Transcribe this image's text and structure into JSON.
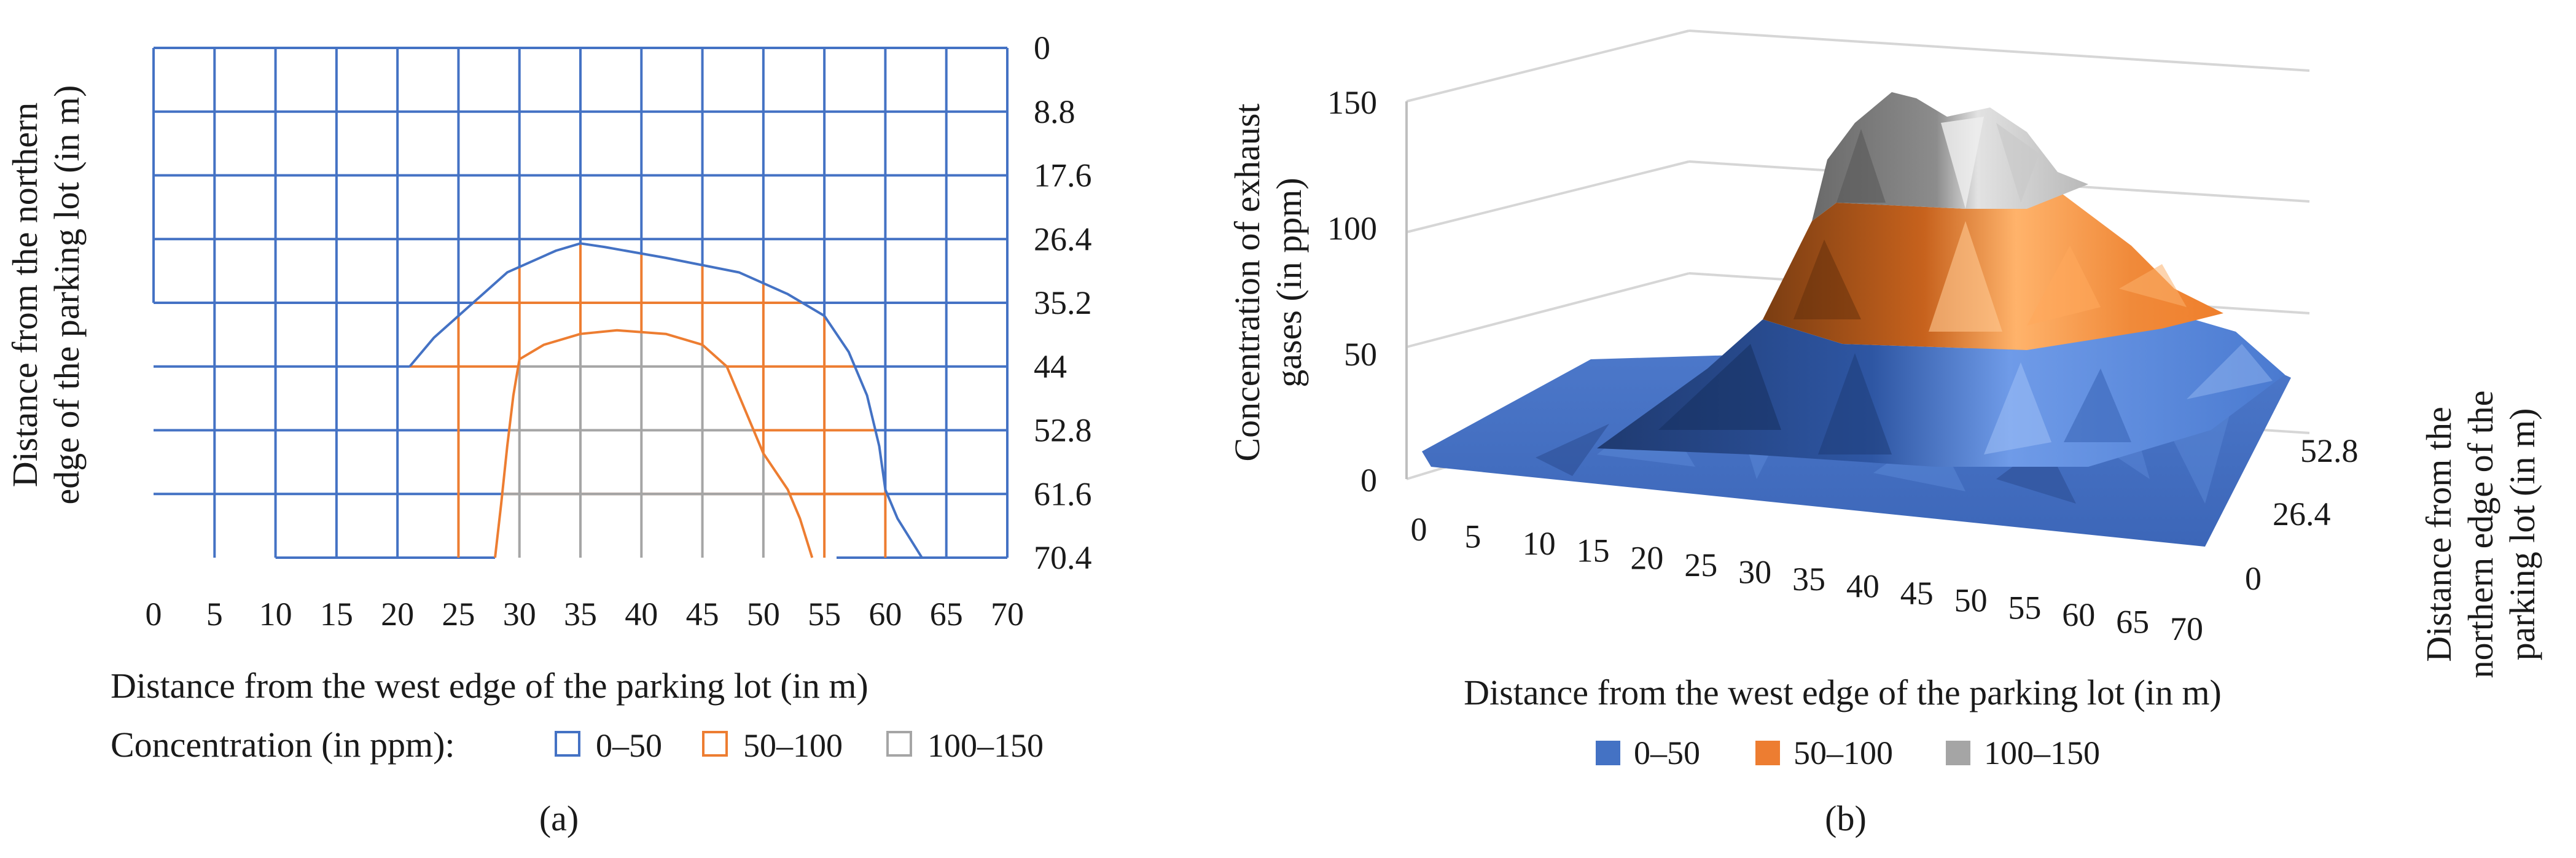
{
  "chart_data": [
    {
      "panel_label": "(a)",
      "type": "contour",
      "xlabel": "Distance from the west edge of the parking lot (in m)",
      "ylabel_line1": "Distance from the northern",
      "ylabel_line2": "edge of the parking lot (in m)",
      "x_ticks": [
        "0",
        "5",
        "10",
        "15",
        "20",
        "25",
        "30",
        "35",
        "40",
        "45",
        "50",
        "55",
        "60",
        "65",
        "70"
      ],
      "y_ticks": [
        "0",
        "8.8",
        "17.6",
        "26.4",
        "35.2",
        "44",
        "52.8",
        "61.6",
        "70.4"
      ],
      "xlim": [
        0,
        70
      ],
      "ylim": [
        0,
        70.4
      ],
      "legend_title": "Concentration (in ppm):",
      "legend": [
        {
          "label": "0–50",
          "color": "#4472c4"
        },
        {
          "label": "50–100",
          "color": "#ed7d31"
        },
        {
          "label": "100–150",
          "color": "#a5a5a5"
        }
      ],
      "contours": [
        {
          "level": "0–50",
          "points": [
            [
              10,
              70.4
            ],
            [
              10,
              35.2
            ],
            [
              0,
              35.2
            ]
          ]
        },
        {
          "level": "50",
          "points": [
            [
              21,
              44
            ],
            [
              23,
              40
            ],
            [
              25,
              37
            ],
            [
              27,
              34
            ],
            [
              29,
              31
            ],
            [
              33,
              28
            ],
            [
              35,
              27
            ],
            [
              37,
              27.5
            ],
            [
              42,
              29
            ],
            [
              48,
              31
            ],
            [
              52,
              34
            ],
            [
              55,
              37
            ],
            [
              57,
              42
            ],
            [
              58.5,
              48
            ],
            [
              59.5,
              55
            ],
            [
              60,
              61
            ],
            [
              61,
              65
            ],
            [
              63,
              70.4
            ]
          ]
        },
        {
          "level": "100",
          "points": [
            [
              28,
              70.4
            ],
            [
              28.5,
              63
            ],
            [
              29,
              55
            ],
            [
              29.5,
              48
            ],
            [
              30,
              43
            ],
            [
              32,
              41
            ],
            [
              35,
              39.5
            ],
            [
              38,
              39
            ],
            [
              42,
              39.5
            ],
            [
              45,
              41
            ],
            [
              47,
              44
            ],
            [
              48,
              48
            ],
            [
              49,
              52
            ],
            [
              50,
              56
            ],
            [
              52,
              61
            ],
            [
              53,
              65
            ],
            [
              54,
              70.4
            ]
          ]
        }
      ]
    },
    {
      "panel_label": "(b)",
      "type": "surface3d",
      "xlabel": "Distance from the west edge of the parking lot (in m)",
      "ylabel_line1": "Concentration of exhaust",
      "ylabel_line2": "gases (in ppm)",
      "zlabel_line1": "Distance from the",
      "zlabel_line2": "northern edge of the",
      "zlabel_line3": "parking lot (in m)",
      "x_ticks": [
        "0",
        "5",
        "10",
        "15",
        "20",
        "25",
        "30",
        "35",
        "40",
        "45",
        "50",
        "55",
        "60",
        "65",
        "70"
      ],
      "y_ticks": [
        "0",
        "50",
        "100",
        "150"
      ],
      "depth_ticks": [
        "0",
        "26.4",
        "52.8"
      ],
      "ylim": [
        0,
        150
      ],
      "peak_value": 150,
      "peak_x": 40,
      "legend": [
        {
          "label": "0–50",
          "color": "#4472c4"
        },
        {
          "label": "50–100",
          "color": "#ed7d31"
        },
        {
          "label": "100–150",
          "color": "#a5a5a5"
        }
      ]
    }
  ]
}
